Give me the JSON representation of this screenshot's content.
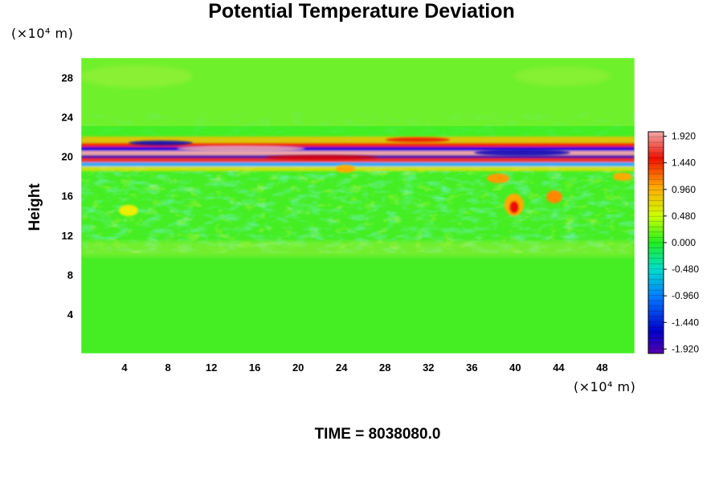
{
  "chart_data": {
    "type": "heatmap",
    "title": "Potential Temperature Deviation",
    "ylabel": "Height",
    "y_unit": "(×10⁴ m)",
    "x_unit": "(×10⁴ m)",
    "footer": "TIME = 8038080.0",
    "xlim": [
      0,
      51
    ],
    "ylim": [
      0,
      30
    ],
    "xticks": [
      "4",
      "8",
      "12",
      "16",
      "20",
      "24",
      "28",
      "32",
      "36",
      "40",
      "44",
      "48"
    ],
    "yticks": [
      "4",
      "8",
      "12",
      "16",
      "20",
      "24",
      "28"
    ],
    "colorbar": {
      "range": [
        -2.0,
        2.0
      ],
      "ticks": [
        "1.920",
        "1.440",
        "0.960",
        "0.480",
        "0.000",
        "-0.480",
        "-0.960",
        "-1.440",
        "-1.920"
      ]
    },
    "features": [
      {
        "label": "strong alternating band",
        "y_range": [
          19.5,
          21.2
        ],
        "value_range": [
          -1.92,
          1.92
        ]
      },
      {
        "label": "wave perturbations",
        "y_range": [
          21,
          24
        ],
        "value_range": [
          -0.6,
          0.6
        ]
      },
      {
        "label": "turbulent mixing layer",
        "y_range": [
          10,
          19
        ],
        "value_range": [
          -0.6,
          0.8
        ]
      },
      {
        "label": "localized warm anomaly",
        "x": 40,
        "y": 15,
        "value": 1.4
      }
    ]
  },
  "colors": {
    "background_field": "#44ee22",
    "upper_field": "#66f022"
  }
}
